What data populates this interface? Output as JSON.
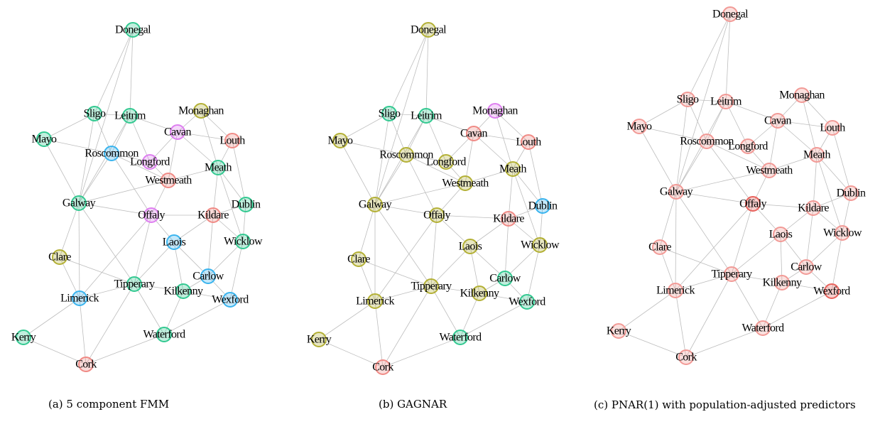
{
  "panels": [
    {
      "caption": "(a) 5 component FMM",
      "nodes": [
        {
          "label": "Donegal",
          "color": "#33c991"
        },
        {
          "label": "Sligo",
          "color": "#33c991"
        },
        {
          "label": "Leitrim",
          "color": "#33c991"
        },
        {
          "label": "Monaghan",
          "color": "#b3b035"
        },
        {
          "label": "Mayo",
          "color": "#33c991"
        },
        {
          "label": "Cavan",
          "color": "#de7ff0"
        },
        {
          "label": "Louth",
          "color": "#f08a85"
        },
        {
          "label": "Roscommon",
          "color": "#3ab4ee"
        },
        {
          "label": "Longford",
          "color": "#de7ff0"
        },
        {
          "label": "Meath",
          "color": "#33c991"
        },
        {
          "label": "Westmeath",
          "color": "#f08a85"
        },
        {
          "label": "Galway",
          "color": "#33c991"
        },
        {
          "label": "Dublin",
          "color": "#33c991"
        },
        {
          "label": "Offaly",
          "color": "#de7ff0"
        },
        {
          "label": "Kildare",
          "color": "#f08a85"
        },
        {
          "label": "Laois",
          "color": "#3ab4ee"
        },
        {
          "label": "Wicklow",
          "color": "#33c991"
        },
        {
          "label": "Clare",
          "color": "#b3b035"
        },
        {
          "label": "Carlow",
          "color": "#3ab4ee"
        },
        {
          "label": "Tipperary",
          "color": "#33c991"
        },
        {
          "label": "Kilkenny",
          "color": "#33c991"
        },
        {
          "label": "Limerick",
          "color": "#3ab4ee"
        },
        {
          "label": "Wexford",
          "color": "#3ab4ee"
        },
        {
          "label": "Kerry",
          "color": "#33c991"
        },
        {
          "label": "Waterford",
          "color": "#33c991"
        },
        {
          "label": "Cork",
          "color": "#f08a85"
        }
      ]
    },
    {
      "caption": "(b) GAGNAR",
      "nodes": [
        {
          "label": "Donegal",
          "color": "#b3b035"
        },
        {
          "label": "Sligo",
          "color": "#33c991"
        },
        {
          "label": "Leitrim",
          "color": "#33c991"
        },
        {
          "label": "Monaghan",
          "color": "#de7ff0"
        },
        {
          "label": "Mayo",
          "color": "#b3b035"
        },
        {
          "label": "Cavan",
          "color": "#f08a85"
        },
        {
          "label": "Louth",
          "color": "#f08a85"
        },
        {
          "label": "Roscommon",
          "color": "#b3b035"
        },
        {
          "label": "Longford",
          "color": "#b3b035"
        },
        {
          "label": "Meath",
          "color": "#b3b035"
        },
        {
          "label": "Westmeath",
          "color": "#b3b035"
        },
        {
          "label": "Galway",
          "color": "#b3b035"
        },
        {
          "label": "Dublin",
          "color": "#3ab4ee"
        },
        {
          "label": "Offaly",
          "color": "#b3b035"
        },
        {
          "label": "Kildare",
          "color": "#f08a85"
        },
        {
          "label": "Laois",
          "color": "#b3b035"
        },
        {
          "label": "Wicklow",
          "color": "#b3b035"
        },
        {
          "label": "Clare",
          "color": "#b3b035"
        },
        {
          "label": "Carlow",
          "color": "#33c991"
        },
        {
          "label": "Tipperary",
          "color": "#b3b035"
        },
        {
          "label": "Kilkenny",
          "color": "#b3b035"
        },
        {
          "label": "Limerick",
          "color": "#b3b035"
        },
        {
          "label": "Wexford",
          "color": "#33c991"
        },
        {
          "label": "Kerry",
          "color": "#b3b035"
        },
        {
          "label": "Waterford",
          "color": "#33c991"
        },
        {
          "label": "Cork",
          "color": "#f08a85"
        }
      ]
    },
    {
      "caption": "(c) PNAR(1) with population-adjusted predictors",
      "nodes": [
        {
          "label": "Donegal",
          "color": "#f29a96"
        },
        {
          "label": "Sligo",
          "color": "#f29a96"
        },
        {
          "label": "Leitrim",
          "color": "#f29a96"
        },
        {
          "label": "Monaghan",
          "color": "#f29a96"
        },
        {
          "label": "Mayo",
          "color": "#f29a96"
        },
        {
          "label": "Cavan",
          "color": "#f29a96"
        },
        {
          "label": "Louth",
          "color": "#f29a96"
        },
        {
          "label": "Roscommon",
          "color": "#f29a96"
        },
        {
          "label": "Longford",
          "color": "#f29a96"
        },
        {
          "label": "Meath",
          "color": "#f29a96"
        },
        {
          "label": "Westmeath",
          "color": "#f29a96"
        },
        {
          "label": "Galway",
          "color": "#f29a96"
        },
        {
          "label": "Dublin",
          "color": "#f29a96"
        },
        {
          "label": "Offaly",
          "color": "#e8625c"
        },
        {
          "label": "Kildare",
          "color": "#f29a96"
        },
        {
          "label": "Laois",
          "color": "#f29a96"
        },
        {
          "label": "Wicklow",
          "color": "#f29a96"
        },
        {
          "label": "Clare",
          "color": "#f29a96"
        },
        {
          "label": "Carlow",
          "color": "#f29a96"
        },
        {
          "label": "Tipperary",
          "color": "#f29a96"
        },
        {
          "label": "Kilkenny",
          "color": "#f29a96"
        },
        {
          "label": "Limerick",
          "color": "#f29a96"
        },
        {
          "label": "Wexford",
          "color": "#e8625c"
        },
        {
          "label": "Kerry",
          "color": "#f29a96"
        },
        {
          "label": "Waterford",
          "color": "#f29a96"
        },
        {
          "label": "Cork",
          "color": "#f29a96"
        }
      ]
    }
  ]
}
